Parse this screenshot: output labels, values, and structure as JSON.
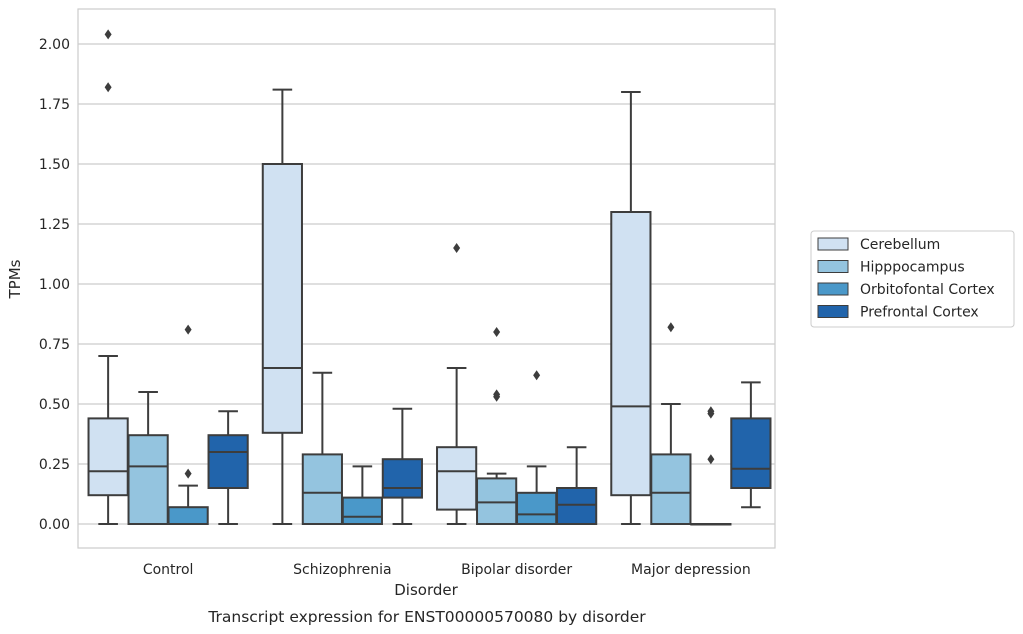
{
  "chart_data": {
    "type": "box",
    "caption": "Transcript expression for ENST00000570080 by disorder",
    "xlabel": "Disorder",
    "ylabel": "TPMs",
    "ylim": [
      -0.1,
      2.15
    ],
    "yticks": [
      "0.00",
      "0.25",
      "0.50",
      "0.75",
      "1.00",
      "1.25",
      "1.50",
      "1.75",
      "2.00"
    ],
    "ytick_values": [
      0,
      0.25,
      0.5,
      0.75,
      1.0,
      1.25,
      1.5,
      1.75,
      2.0
    ],
    "grid": "horizontal",
    "legend_position": "right",
    "categories": [
      "Control",
      "Schizophrenia",
      "Bipolar disorder",
      "Major depression"
    ],
    "series": [
      {
        "name": "Cerebellum",
        "color": "#d0e1f2",
        "boxes": [
          {
            "min": 0.0,
            "q1": 0.12,
            "median": 0.22,
            "q3": 0.44,
            "max": 0.7,
            "outliers": [
              1.82,
              2.04
            ]
          },
          {
            "min": 0.0,
            "q1": 0.38,
            "median": 0.65,
            "q3": 1.5,
            "max": 1.81,
            "outliers": []
          },
          {
            "min": 0.0,
            "q1": 0.06,
            "median": 0.22,
            "q3": 0.32,
            "max": 0.65,
            "outliers": [
              1.15
            ]
          },
          {
            "min": 0.0,
            "q1": 0.12,
            "median": 0.49,
            "q3": 1.3,
            "max": 1.8,
            "outliers": []
          }
        ]
      },
      {
        "name": "Hipppocampus",
        "color": "#94c4df",
        "boxes": [
          {
            "min": 0.0,
            "q1": 0.0,
            "median": 0.24,
            "q3": 0.37,
            "max": 0.55,
            "outliers": []
          },
          {
            "min": 0.0,
            "q1": 0.0,
            "median": 0.13,
            "q3": 0.29,
            "max": 0.63,
            "outliers": []
          },
          {
            "min": 0.0,
            "q1": 0.0,
            "median": 0.09,
            "q3": 0.19,
            "max": 0.21,
            "outliers": [
              0.53,
              0.54,
              0.8
            ]
          },
          {
            "min": 0.0,
            "q1": 0.0,
            "median": 0.13,
            "q3": 0.29,
            "max": 0.5,
            "outliers": [
              0.82
            ]
          }
        ]
      },
      {
        "name": "Orbitofontal Cortex",
        "color": "#4a98c9",
        "boxes": [
          {
            "min": 0.0,
            "q1": 0.0,
            "median": 0.0,
            "q3": 0.07,
            "max": 0.16,
            "outliers": [
              0.21,
              0.81
            ]
          },
          {
            "min": 0.0,
            "q1": 0.0,
            "median": 0.03,
            "q3": 0.11,
            "max": 0.24,
            "outliers": []
          },
          {
            "min": 0.0,
            "q1": 0.0,
            "median": 0.04,
            "q3": 0.13,
            "max": 0.24,
            "outliers": [
              0.62
            ]
          },
          {
            "min": 0.0,
            "q1": 0.0,
            "median": 0.0,
            "q3": 0.0,
            "max": 0.0,
            "outliers": [
              0.27,
              0.46,
              0.47
            ]
          }
        ]
      },
      {
        "name": "Prefrontal Cortex",
        "color": "#2164ab",
        "boxes": [
          {
            "min": 0.0,
            "q1": 0.15,
            "median": 0.3,
            "q3": 0.37,
            "max": 0.47,
            "outliers": []
          },
          {
            "min": 0.0,
            "q1": 0.11,
            "median": 0.15,
            "q3": 0.27,
            "max": 0.48,
            "outliers": []
          },
          {
            "min": 0.0,
            "q1": 0.0,
            "median": 0.08,
            "q3": 0.15,
            "max": 0.32,
            "outliers": []
          },
          {
            "min": 0.07,
            "q1": 0.15,
            "median": 0.23,
            "q3": 0.44,
            "max": 0.59,
            "outliers": []
          }
        ]
      }
    ]
  }
}
